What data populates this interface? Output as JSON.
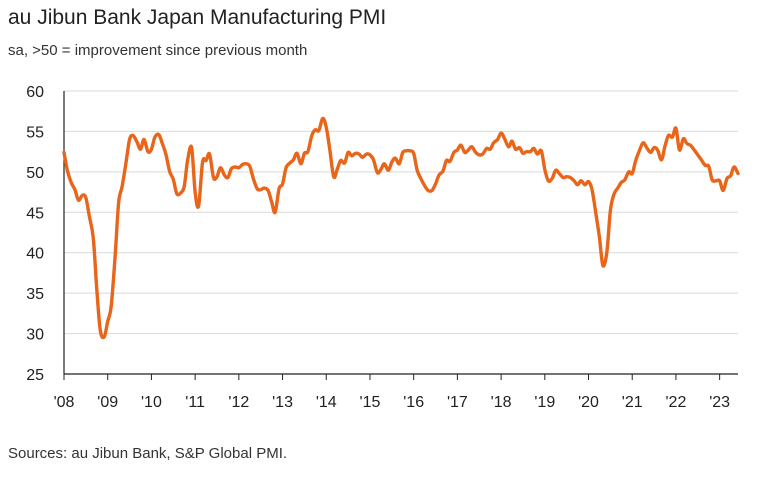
{
  "chart_data": {
    "type": "line",
    "title": "au Jibun Bank Japan Manufacturing PMI",
    "subtitle": "sa, >50 = improvement since previous month",
    "source": "Sources: au Jibun Bank, S&P Global PMI.",
    "xlabel": "",
    "ylabel": "",
    "ylim": [
      25,
      60
    ],
    "xlim": [
      2008.0,
      2023.42
    ],
    "y_ticks": [
      "60",
      "55",
      "50",
      "45",
      "40",
      "35",
      "30",
      "25"
    ],
    "x_ticks": [
      "'08",
      "'09",
      "'10",
      "'11",
      "'12",
      "'13",
      "'14",
      "'15",
      "'16",
      "'17",
      "'18",
      "'19",
      "'20",
      "'21",
      "'22",
      "'23"
    ],
    "grid": "horizontal",
    "colors": {
      "line": "#E8651A",
      "grid": "#d9d9d9",
      "axis": "#222222"
    },
    "series": [
      {
        "x": [
          2008.0,
          2008.08,
          2008.17,
          2008.25,
          2008.33,
          2008.42,
          2008.5,
          2008.58,
          2008.67,
          2008.75,
          2008.83,
          2008.92,
          2009.0,
          2009.08,
          2009.17,
          2009.25,
          2009.33,
          2009.42,
          2009.5,
          2009.58,
          2009.67,
          2009.75,
          2009.83,
          2009.92,
          2010.0,
          2010.08,
          2010.17,
          2010.25,
          2010.33,
          2010.42,
          2010.5,
          2010.58,
          2010.67,
          2010.75,
          2010.83,
          2010.92,
          2011.0,
          2011.08,
          2011.17,
          2011.25,
          2011.33,
          2011.42,
          2011.5,
          2011.58,
          2011.67,
          2011.75,
          2011.83,
          2011.92,
          2012.0,
          2012.08,
          2012.17,
          2012.25,
          2012.33,
          2012.42,
          2012.5,
          2012.58,
          2012.67,
          2012.75,
          2012.83,
          2012.92,
          2013.0,
          2013.08,
          2013.17,
          2013.25,
          2013.33,
          2013.42,
          2013.5,
          2013.58,
          2013.67,
          2013.75,
          2013.83,
          2013.92,
          2014.0,
          2014.08,
          2014.17,
          2014.25,
          2014.33,
          2014.42,
          2014.5,
          2014.58,
          2014.67,
          2014.75,
          2014.83,
          2014.92,
          2015.0,
          2015.08,
          2015.17,
          2015.25,
          2015.33,
          2015.42,
          2015.5,
          2015.58,
          2015.67,
          2015.75,
          2015.83,
          2015.92,
          2016.0,
          2016.08,
          2016.17,
          2016.25,
          2016.33,
          2016.42,
          2016.5,
          2016.58,
          2016.67,
          2016.75,
          2016.83,
          2016.92,
          2017.0,
          2017.08,
          2017.17,
          2017.25,
          2017.33,
          2017.42,
          2017.5,
          2017.58,
          2017.67,
          2017.75,
          2017.83,
          2017.92,
          2018.0,
          2018.08,
          2018.17,
          2018.25,
          2018.33,
          2018.42,
          2018.5,
          2018.58,
          2018.67,
          2018.75,
          2018.83,
          2018.92,
          2019.0,
          2019.08,
          2019.17,
          2019.25,
          2019.33,
          2019.42,
          2019.5,
          2019.58,
          2019.67,
          2019.75,
          2019.83,
          2019.92,
          2020.0,
          2020.08,
          2020.17,
          2020.25,
          2020.33,
          2020.42,
          2020.5,
          2020.58,
          2020.67,
          2020.75,
          2020.83,
          2020.92,
          2021.0,
          2021.08,
          2021.17,
          2021.25,
          2021.33,
          2021.42,
          2021.5,
          2021.58,
          2021.67,
          2021.75,
          2021.83,
          2021.92,
          2022.0,
          2022.08,
          2022.17,
          2022.25,
          2022.33,
          2022.42,
          2022.5,
          2022.58,
          2022.67,
          2022.75,
          2022.83,
          2022.92,
          2023.0,
          2023.08,
          2023.17,
          2023.25,
          2023.33,
          2023.42
        ],
        "values": [
          52.4,
          50.1,
          48.6,
          47.8,
          46.5,
          47.1,
          46.8,
          44.5,
          41.8,
          35.5,
          30.4,
          29.6,
          31.5,
          33.4,
          39.6,
          46.2,
          48.2,
          51.2,
          54.0,
          54.5,
          53.7,
          52.8,
          54.0,
          52.5,
          52.8,
          54.3,
          54.6,
          53.5,
          52.2,
          50.0,
          49.1,
          47.3,
          47.4,
          48.2,
          51.5,
          53.0,
          47.5,
          45.8,
          51.2,
          51.4,
          52.2,
          49.3,
          49.4,
          50.5,
          49.6,
          49.3,
          50.4,
          50.6,
          50.5,
          50.9,
          51.0,
          50.7,
          49.2,
          47.9,
          47.8,
          48.0,
          47.7,
          46.3,
          45.0,
          47.9,
          48.5,
          50.5,
          51.1,
          51.5,
          52.3,
          51.0,
          52.3,
          52.5,
          54.5,
          55.2,
          55.1,
          56.6,
          55.5,
          52.8,
          49.4,
          50.3,
          51.4,
          51.1,
          52.4,
          52.0,
          52.3,
          52.2,
          51.8,
          52.2,
          52.1,
          51.5,
          49.9,
          50.3,
          51.0,
          50.2,
          51.2,
          51.7,
          51.0,
          52.4,
          52.6,
          52.6,
          52.3,
          50.2,
          49.1,
          48.3,
          47.7,
          47.7,
          48.5,
          49.6,
          50.1,
          51.4,
          51.3,
          52.4,
          52.7,
          53.3,
          52.4,
          52.7,
          53.1,
          52.4,
          52.1,
          52.2,
          52.9,
          52.8,
          53.6,
          54.0,
          54.8,
          54.1,
          53.1,
          53.8,
          52.8,
          53.0,
          52.3,
          52.5,
          52.5,
          52.9,
          52.2,
          52.6,
          50.3,
          48.9,
          49.2,
          50.2,
          49.8,
          49.3,
          49.4,
          49.3,
          48.9,
          48.4,
          48.9,
          48.4,
          48.8,
          47.8,
          44.8,
          41.9,
          38.4,
          40.1,
          45.2,
          47.2,
          48.0,
          48.7,
          49.0,
          50.0,
          49.8,
          51.4,
          52.7,
          53.6,
          53.0,
          52.4,
          53.0,
          52.7,
          51.5,
          53.2,
          54.5,
          54.3,
          55.4,
          52.7,
          54.1,
          53.5,
          53.3,
          52.7,
          52.1,
          51.5,
          50.8,
          50.7,
          49.0,
          48.9,
          48.9,
          47.7,
          49.2,
          49.5,
          50.6,
          49.8
        ]
      }
    ]
  }
}
